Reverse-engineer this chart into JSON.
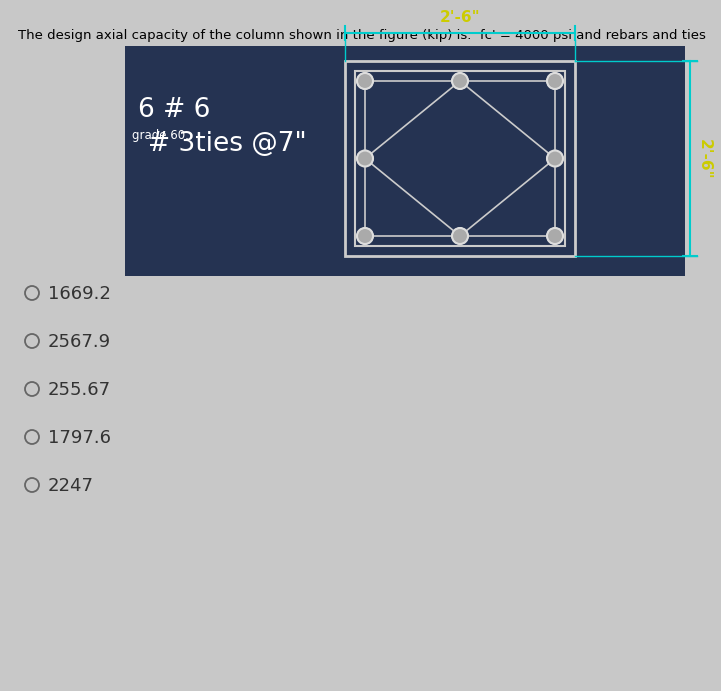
{
  "title": "The design axial capacity of the column shown in the figure (kip) is.  fc' = 4000 psi and rebars and ties",
  "title_fontsize": 9.5,
  "bg_color": "#253352",
  "page_bg": "#c8c8c8",
  "label_text1": "6 # 6",
  "label_text2": "# 3ties @7\"",
  "label_prefix": "grade 60.",
  "dim_top": "2'-6\"",
  "dim_right": "2'-6\"",
  "options": [
    {
      "label": "1669.2"
    },
    {
      "label": "2567.9"
    },
    {
      "label": "255.67"
    },
    {
      "label": "1797.6"
    },
    {
      "label": "2247"
    }
  ],
  "dim_line_color": "#00cccc",
  "dim_text_color": "#cccc00",
  "tie_line_color": "#cccccc",
  "rebar_fill": "#aaaaaa",
  "rebar_edge": "#dddddd",
  "square_color": "#cccccc"
}
